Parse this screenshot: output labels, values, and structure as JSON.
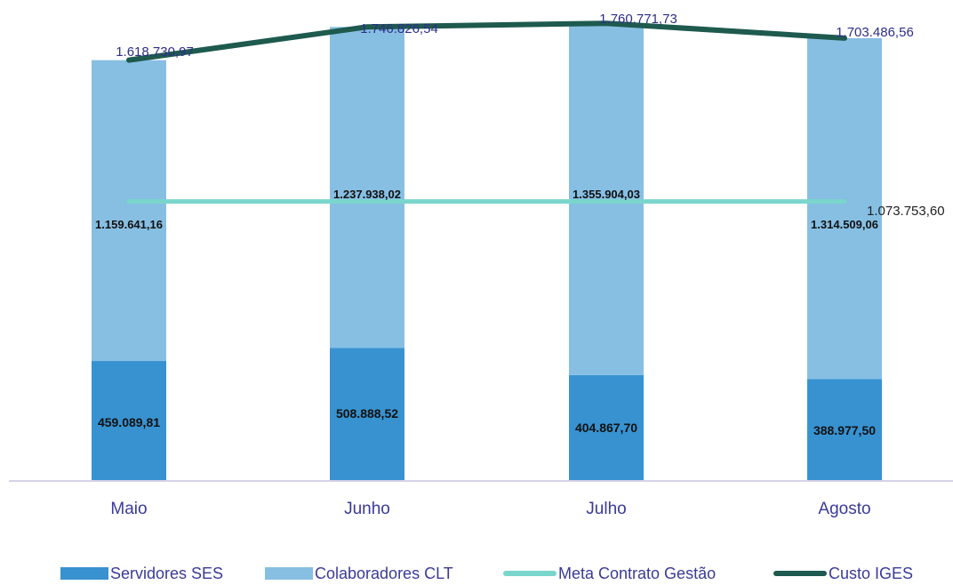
{
  "chart_data": {
    "type": "bar",
    "stacked": true,
    "categories": [
      "Maio",
      "Junho",
      "Julho",
      "Agosto"
    ],
    "series": [
      {
        "name": "Servidores SES",
        "type": "bar",
        "color": "#3892d0",
        "values": [
          459089.81,
          508888.52,
          404867.7,
          388977.5
        ],
        "labels": [
          "459.089,81",
          "508.888,52",
          "404.867,70",
          "388.977,50"
        ]
      },
      {
        "name": "Colaboradores CLT",
        "type": "bar",
        "color": "#87bfe3",
        "values": [
          1159641.16,
          1237938.02,
          1355904.03,
          1314509.06
        ],
        "labels": [
          "1.159.641,16",
          "1.237.938,02",
          "1.355.904,03",
          "1.314.509,06"
        ]
      },
      {
        "name": "Meta Contrato Gestão",
        "type": "line",
        "color": "#7ad6cc",
        "values": [
          1073753.6,
          1073753.6,
          1073753.6,
          1073753.6
        ],
        "labels": [
          "1.073.753,60"
        ]
      },
      {
        "name": "Custo IGES",
        "type": "line",
        "color": "#1e5a4e",
        "values": [
          1618730.97,
          1746826.54,
          1760771.73,
          1703486.56
        ],
        "labels": [
          "1.618.730,97",
          "1.746.826,54",
          "1.760.771,73",
          "1.703.486,56"
        ]
      }
    ],
    "ylim": [
      0,
      1830000
    ],
    "grid": false,
    "legend": "bottom",
    "title": "",
    "xlabel": "",
    "ylabel": ""
  },
  "legend": {
    "items": [
      {
        "label": "Servidores SES",
        "kind": "box",
        "color": "#3892d0"
      },
      {
        "label": "Colaboradores CLT",
        "kind": "box",
        "color": "#87bfe3"
      },
      {
        "label": "Meta Contrato Gestão",
        "kind": "line",
        "color": "#7ad6cc"
      },
      {
        "label": "Custo IGES",
        "kind": "line",
        "color": "#1e5a4e"
      }
    ]
  }
}
